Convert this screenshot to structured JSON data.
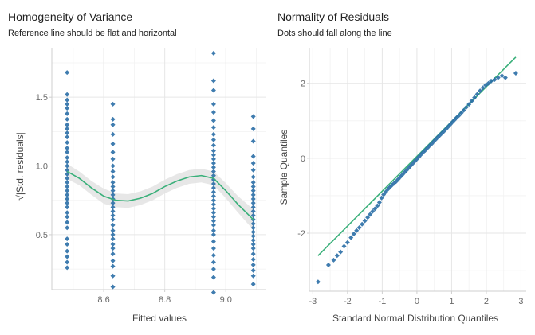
{
  "chart_data": [
    {
      "type": "scatter",
      "title": "Homogeneity of Variance",
      "subtitle": "Reference line should be flat and horizontal",
      "xlabel": "Fitted values",
      "ylabel": "√|Std. residuals|",
      "xlim": [
        8.43,
        9.13
      ],
      "ylim": [
        0.1,
        1.86
      ],
      "xticks": [
        8.6,
        8.8,
        9.0
      ],
      "xtick_labels": [
        "8.6",
        "8.8",
        "9.0"
      ],
      "yticks": [
        0.5,
        1.0,
        1.5
      ],
      "ytick_labels": [
        "0.5",
        "1.0",
        "1.5"
      ],
      "grid": true,
      "point_color": "#2a6ea6",
      "line_color": "#3ab07a",
      "band_color": "#e3e3e3",
      "groups": [
        {
          "x": 8.48,
          "y": [
            1.68,
            1.52,
            1.48,
            1.45,
            1.42,
            1.38,
            1.34,
            1.3,
            1.27,
            1.24,
            1.21,
            1.17,
            1.13,
            1.1,
            1.06,
            1.03,
            1.0,
            0.97,
            0.94,
            0.91,
            0.88,
            0.85,
            0.82,
            0.79,
            0.76,
            0.73,
            0.7,
            0.66,
            0.63,
            0.59,
            0.55,
            0.47,
            0.43,
            0.38,
            0.34,
            0.3,
            0.26
          ]
        },
        {
          "x": 8.63,
          "y": [
            1.45,
            1.34,
            1.3,
            1.23,
            1.16,
            1.1,
            1.05,
            1.0,
            0.96,
            0.92,
            0.88,
            0.85,
            0.82,
            0.79,
            0.76,
            0.73,
            0.7,
            0.67,
            0.64,
            0.61,
            0.57,
            0.53,
            0.5,
            0.47,
            0.43,
            0.4,
            0.36,
            0.31,
            0.27,
            0.2,
            0.12
          ]
        },
        {
          "x": 8.96,
          "y": [
            1.82,
            1.62,
            1.55,
            1.45,
            1.39,
            1.33,
            1.28,
            1.23,
            1.19,
            1.15,
            1.11,
            1.08,
            1.05,
            1.02,
            0.99,
            0.96,
            0.93,
            0.9,
            0.87,
            0.84,
            0.81,
            0.78,
            0.75,
            0.72,
            0.69,
            0.66,
            0.63,
            0.6,
            0.57,
            0.53,
            0.5,
            0.45,
            0.4,
            0.35,
            0.3,
            0.25,
            0.19,
            0.08
          ]
        },
        {
          "x": 9.09,
          "y": [
            1.36,
            1.27,
            1.18,
            1.07,
            1.02,
            0.97,
            0.92,
            0.88,
            0.85,
            0.82,
            0.79,
            0.76,
            0.73,
            0.7,
            0.67,
            0.64,
            0.61,
            0.58,
            0.55,
            0.52,
            0.49,
            0.46,
            0.43,
            0.4,
            0.36,
            0.32,
            0.28,
            0.24,
            0.2,
            0.14
          ]
        }
      ],
      "smooth": {
        "x": [
          8.48,
          8.52,
          8.56,
          8.6,
          8.64,
          8.68,
          8.72,
          8.76,
          8.8,
          8.84,
          8.88,
          8.92,
          8.96,
          9.0,
          9.04,
          9.09
        ],
        "y": [
          0.96,
          0.91,
          0.84,
          0.78,
          0.75,
          0.745,
          0.765,
          0.8,
          0.85,
          0.89,
          0.92,
          0.93,
          0.91,
          0.82,
          0.72,
          0.61
        ],
        "band_half_width": [
          0.055,
          0.05,
          0.05,
          0.055,
          0.05,
          0.05,
          0.05,
          0.05,
          0.05,
          0.05,
          0.05,
          0.05,
          0.05,
          0.055,
          0.06,
          0.075
        ]
      }
    },
    {
      "type": "scatter",
      "title": "Normality of Residuals",
      "subtitle": "Dots should fall along the line",
      "xlabel": "Standard Normal Distribution Quantiles",
      "ylabel": "Sample Quantiles",
      "xlim": [
        -3.1,
        3.15
      ],
      "ylim": [
        -3.55,
        2.95
      ],
      "xticks": [
        -3,
        -2,
        -1,
        0,
        1,
        2,
        3
      ],
      "xtick_labels": [
        "-3",
        "-2",
        "-1",
        "0",
        "1",
        "2",
        "3"
      ],
      "yticks": [
        -2,
        0,
        2
      ],
      "ytick_labels": [
        "-2",
        "0",
        "2"
      ],
      "grid": true,
      "point_color": "#2a6ea6",
      "line_color": "#3ab07a",
      "reference_line": {
        "x": [
          -2.85,
          2.85
        ],
        "y": [
          -2.6,
          2.7
        ]
      },
      "points": [
        [
          -2.85,
          -3.3
        ],
        [
          -2.55,
          -2.85
        ],
        [
          -2.4,
          -2.72
        ],
        [
          -2.3,
          -2.6
        ],
        [
          -2.2,
          -2.5
        ],
        [
          -2.1,
          -2.35
        ],
        [
          -2.0,
          -2.25
        ],
        [
          -1.9,
          -2.12
        ],
        [
          -1.82,
          -2.02
        ],
        [
          -1.74,
          -1.93
        ],
        [
          -1.66,
          -1.85
        ],
        [
          -1.58,
          -1.76
        ],
        [
          -1.5,
          -1.67
        ],
        [
          -1.42,
          -1.58
        ],
        [
          -1.35,
          -1.5
        ],
        [
          -1.28,
          -1.42
        ],
        [
          -1.21,
          -1.35
        ],
        [
          -1.14,
          -1.27
        ],
        [
          -1.08,
          -1.18
        ],
        [
          -1.02,
          -1.06
        ],
        [
          -0.96,
          -0.97
        ],
        [
          -0.9,
          -0.9
        ],
        [
          -0.84,
          -0.83
        ],
        [
          -0.78,
          -0.77
        ],
        [
          -0.72,
          -0.72
        ],
        [
          -0.66,
          -0.67
        ],
        [
          -0.6,
          -0.62
        ],
        [
          -0.54,
          -0.56
        ],
        [
          -0.48,
          -0.5
        ],
        [
          -0.42,
          -0.44
        ],
        [
          -0.36,
          -0.38
        ],
        [
          -0.3,
          -0.32
        ],
        [
          -0.24,
          -0.26
        ],
        [
          -0.18,
          -0.2
        ],
        [
          -0.12,
          -0.14
        ],
        [
          -0.06,
          -0.08
        ],
        [
          0.0,
          -0.02
        ],
        [
          0.06,
          0.04
        ],
        [
          0.12,
          0.1
        ],
        [
          0.18,
          0.16
        ],
        [
          0.24,
          0.21
        ],
        [
          0.3,
          0.27
        ],
        [
          0.36,
          0.33
        ],
        [
          0.42,
          0.38
        ],
        [
          0.48,
          0.44
        ],
        [
          0.54,
          0.5
        ],
        [
          0.6,
          0.56
        ],
        [
          0.66,
          0.61
        ],
        [
          0.72,
          0.67
        ],
        [
          0.78,
          0.72
        ],
        [
          0.84,
          0.78
        ],
        [
          0.9,
          0.84
        ],
        [
          0.96,
          0.9
        ],
        [
          1.02,
          0.96
        ],
        [
          1.08,
          1.02
        ],
        [
          1.14,
          1.08
        ],
        [
          1.21,
          1.14
        ],
        [
          1.28,
          1.21
        ],
        [
          1.35,
          1.28
        ],
        [
          1.42,
          1.36
        ],
        [
          1.5,
          1.44
        ],
        [
          1.58,
          1.53
        ],
        [
          1.66,
          1.62
        ],
        [
          1.74,
          1.71
        ],
        [
          1.82,
          1.8
        ],
        [
          1.9,
          1.88
        ],
        [
          1.98,
          1.95
        ],
        [
          2.06,
          2.0
        ],
        [
          2.14,
          2.06
        ],
        [
          2.24,
          2.1
        ],
        [
          2.34,
          2.15
        ],
        [
          2.45,
          2.2
        ],
        [
          2.55,
          2.15
        ],
        [
          2.85,
          2.27
        ]
      ]
    }
  ]
}
